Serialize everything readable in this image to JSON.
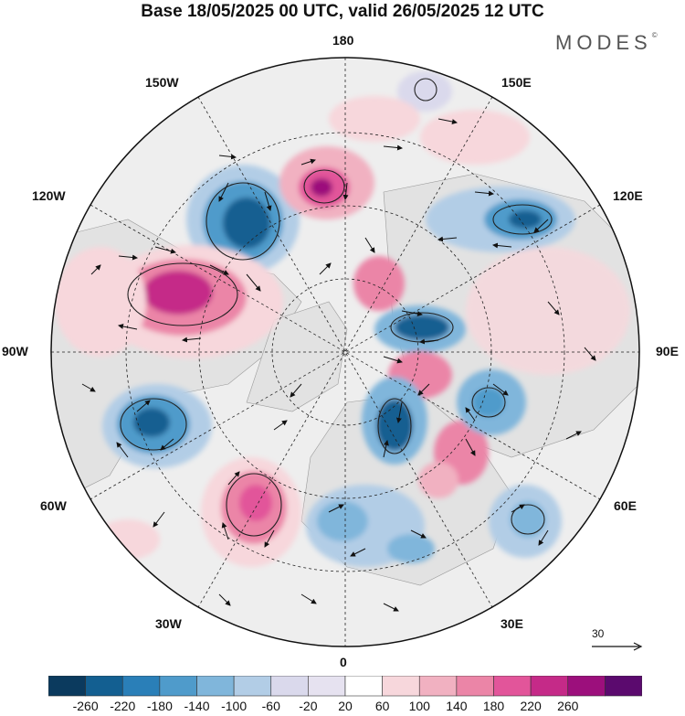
{
  "title": "Base 18/05/2025 00 UTC, valid 26/05/2025 12 UTC",
  "brand": {
    "name": "MODES",
    "mark": "©"
  },
  "longitude_labels": {
    "l180": "180",
    "l150w": "150W",
    "l150e": "150E",
    "l120w": "120W",
    "l120e": "120E",
    "l90w": "90W",
    "l90e": "90E",
    "l60w": "60W",
    "l60e": "60E",
    "l30w": "30W",
    "l30e": "30E",
    "l0": "0"
  },
  "reference_vector": {
    "value": "30"
  },
  "colorbar": {
    "colors": [
      "#0b3a5e",
      "#135f91",
      "#2a7fb8",
      "#4f9bcb",
      "#80b6db",
      "#b2cde6",
      "#dad9ec",
      "#e6e2f0",
      "#ffffff",
      "#f7d7dc",
      "#f1b1c1",
      "#eb85a7",
      "#e2559a",
      "#c52a88",
      "#9c0f7c",
      "#5b0a6e"
    ],
    "ticks": [
      "-260",
      "-220",
      "-180",
      "-140",
      "-100",
      "-60",
      "-20",
      "20",
      "60",
      "100",
      "140",
      "180",
      "220",
      "260"
    ]
  },
  "anomalies": [
    {
      "id": "neg-pacific",
      "sign": "neg",
      "level": 5
    },
    {
      "id": "pos-aleutian",
      "sign": "pos",
      "level": 4
    },
    {
      "id": "pos-canada",
      "sign": "pos",
      "level": 5
    },
    {
      "id": "neg-siberia-east",
      "sign": "neg",
      "level": 5
    },
    {
      "id": "neg-arctic",
      "sign": "neg",
      "level": 5
    },
    {
      "id": "pos-arctic",
      "sign": "pos",
      "level": 3
    },
    {
      "id": "neg-labrador",
      "sign": "neg",
      "level": 5
    },
    {
      "id": "pos-atlantic",
      "sign": "pos",
      "level": 4
    },
    {
      "id": "neg-europe",
      "sign": "neg",
      "level": 3
    },
    {
      "id": "neg-scandinavia",
      "sign": "neg",
      "level": 4
    },
    {
      "id": "pos-siberia",
      "sign": "pos",
      "level": 3
    },
    {
      "id": "neg-siberia-west",
      "sign": "neg",
      "level": 4
    },
    {
      "id": "neg-central-asia",
      "sign": "neg",
      "level": 3
    }
  ]
}
